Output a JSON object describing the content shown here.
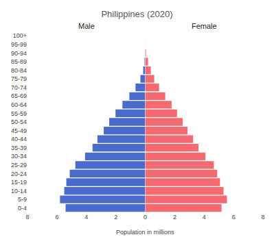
{
  "chart_data": {
    "type": "bar",
    "orientation": "horizontal",
    "title": "Philippines (2020)",
    "x_label": "Population in millions",
    "categories": [
      "0-4",
      "5-9",
      "10-14",
      "15-19",
      "20-24",
      "25-29",
      "30-34",
      "35-39",
      "40-44",
      "45-49",
      "50-54",
      "55-59",
      "60-64",
      "65-69",
      "70-74",
      "75-79",
      "80-84",
      "85-89",
      "90-94",
      "95-99",
      "100+"
    ],
    "series": [
      {
        "name": "Male",
        "color": "#4a6bcb",
        "values": [
          5.41,
          5.79,
          5.5,
          5.36,
          5.13,
          4.75,
          4.09,
          3.58,
          3.25,
          2.82,
          2.45,
          2.02,
          1.55,
          1.08,
          0.66,
          0.33,
          0.14,
          0.05,
          0.01,
          0,
          0
        ]
      },
      {
        "name": "Female",
        "color": "#f56a70",
        "values": [
          5.18,
          5.55,
          5.32,
          5.08,
          4.89,
          4.66,
          4.09,
          3.62,
          3.25,
          2.87,
          2.54,
          2.16,
          1.79,
          1.36,
          0.94,
          0.61,
          0.38,
          0.19,
          0.05,
          0.01,
          0
        ]
      }
    ],
    "xlim": [
      0,
      8
    ],
    "xticks": [
      0,
      2,
      4,
      6,
      8
    ],
    "grid": false
  }
}
